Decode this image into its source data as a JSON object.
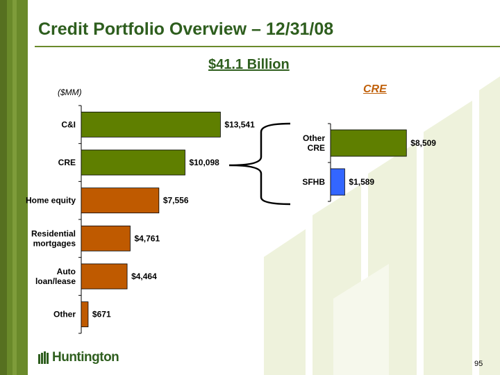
{
  "slide": {
    "title": "Credit Portfolio Overview – 12/31/08",
    "subtitle": "$41.1 Billion",
    "unit_label": "($MM)",
    "cre_heading": "CRE",
    "logo_text": "Huntington",
    "page_number": "95"
  },
  "colors": {
    "brand_green": "#2e5e1e",
    "bar_green": "#5f7f00",
    "bar_orange": "#bf5a00",
    "bar_blue": "#3366ff",
    "accent_orange": "#c0600a"
  },
  "chart_data": [
    {
      "type": "bar",
      "orientation": "horizontal",
      "categories": [
        "C&I",
        "CRE",
        "Home equity",
        "Residential mortgages",
        "Auto loan/lease",
        "Other"
      ],
      "category_lines": [
        [
          "C&I"
        ],
        [
          "CRE"
        ],
        [
          "Home equity"
        ],
        [
          "Residential",
          "mortgages"
        ],
        [
          "Auto",
          "loan/lease"
        ],
        [
          "Other"
        ]
      ],
      "values": [
        13541,
        10098,
        7556,
        4761,
        4464,
        671
      ],
      "data_labels": [
        "$13,541",
        "$10,098",
        "$7,556",
        "$4,761",
        "$4,464",
        "$671"
      ],
      "bar_colors": [
        "#5f7f00",
        "#5f7f00",
        "#bf5a00",
        "#bf5a00",
        "#bf5a00",
        "#bf5a00"
      ],
      "title": "",
      "xlabel": "",
      "ylabel": "",
      "xlim": [
        0,
        15000
      ],
      "grid": false,
      "legend": false
    },
    {
      "type": "bar",
      "orientation": "horizontal",
      "categories": [
        "Other CRE",
        "SFHB"
      ],
      "category_lines": [
        [
          "Other",
          "CRE"
        ],
        [
          "SFHB"
        ]
      ],
      "values": [
        8509,
        1589
      ],
      "data_labels": [
        "$8,509",
        "$1,589"
      ],
      "bar_colors": [
        "#5f7f00",
        "#3366ff"
      ],
      "title": "CRE",
      "xlabel": "",
      "ylabel": "",
      "xlim": [
        0,
        9500
      ],
      "grid": false,
      "legend": false
    }
  ]
}
